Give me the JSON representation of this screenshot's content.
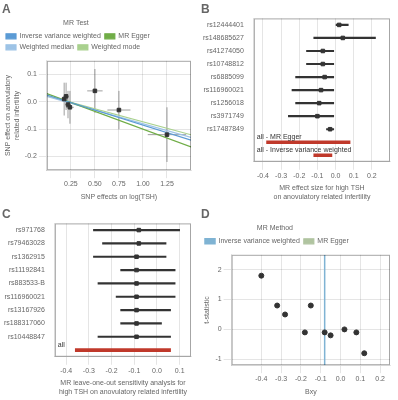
{
  "chart_data": [
    {
      "type": "scatter",
      "title": "A",
      "xlabel": "SNP effects on log(TSH)",
      "ylabel": "SNP effect on anovulatory related infertility",
      "xlim": [
        0.0,
        1.5
      ],
      "ylim": [
        -0.25,
        0.15
      ],
      "xticks": [
        0.25,
        {
          "value": 0.5,
          "label": "0.50"
        },
        0.75,
        {
          "value": 1.0,
          "label": "1.00"
        },
        1.25
      ],
      "yticks": [
        -0.2,
        -0.1,
        {
          "value": 0,
          "label": "0.0"
        },
        0.1
      ],
      "grid": true,
      "legend": "top",
      "legend_title": "MR Test",
      "series": [
        {
          "type": "scatter",
          "color": "#333333",
          "marker": "square",
          "x": [
            0.18,
            0.2,
            0.22,
            0.24,
            0.5,
            0.75,
            1.25
          ],
          "values": [
            0.01,
            0.02,
            -0.01,
            -0.02,
            0.04,
            -0.03,
            -0.12
          ],
          "xerr": [
            0.04,
            0.03,
            0.03,
            0.04,
            0.08,
            0.12,
            0.2
          ],
          "yerr": [
            0.06,
            0.05,
            0.05,
            0.06,
            0.08,
            0.07,
            0.1
          ]
        },
        {
          "name": "Inverse variance weighted",
          "type": "line",
          "color": "#5b9bd5",
          "x": [
            0.0,
            1.5
          ],
          "values": [
            0.025,
            -0.14
          ]
        },
        {
          "name": "MR Egger",
          "type": "line",
          "color": "#70ad47",
          "x": [
            0.0,
            1.5
          ],
          "values": [
            0.03,
            -0.165
          ]
        },
        {
          "name": "Weighted median",
          "type": "line",
          "color": "#9dc3e6",
          "x": [
            0.0,
            1.5
          ],
          "values": [
            0.02,
            -0.13
          ]
        },
        {
          "name": "Weighted mode",
          "type": "line",
          "color": "#a9d18e",
          "x": [
            0.0,
            1.5
          ],
          "values": [
            0.022,
            -0.1205
          ]
        }
      ]
    },
    {
      "type": "forest",
      "title": "B",
      "orientation": "horizontal",
      "xlabel": "MR effect size for high TSH\non anovulatory related infertility",
      "xlim": [
        -0.45,
        0.3
      ],
      "xticks": [
        -0.4,
        -0.3,
        -0.2,
        -0.1,
        {
          "value": 0,
          "label": "0.0"
        },
        0.1,
        0.2
      ],
      "grid": "x",
      "color": "#333333",
      "marker": "square",
      "categories": [
        "rs12444401",
        "rs148685627",
        "rs41274050",
        "rs10748812",
        "rs6885099",
        "rs116960021",
        "rs1256018",
        "rs3971749",
        "rs17487849"
      ],
      "values": [
        0.02,
        0.04,
        -0.07,
        -0.07,
        -0.06,
        -0.08,
        -0.09,
        -0.1,
        -0.03
      ],
      "ci_low": [
        0.0,
        -0.12,
        -0.16,
        -0.16,
        -0.22,
        -0.24,
        -0.22,
        -0.26,
        -0.05
      ],
      "ci_high": [
        0.07,
        0.22,
        -0.01,
        -0.01,
        -0.01,
        -0.01,
        -0.01,
        -0.01,
        -0.01
      ],
      "summary": [
        {
          "label": "all - MR Egger",
          "ci_low": -0.38,
          "ci_high": 0.08,
          "color": "#c0392b"
        },
        {
          "label": "all - Inverse variance weighted",
          "ci_low": -0.12,
          "ci_high": -0.02,
          "color": "#c0392b"
        }
      ]
    },
    {
      "type": "forest",
      "title": "C",
      "orientation": "horizontal",
      "xlabel": "MR leave-one-out sensitivity analysis for\nhigh TSH on anovulatory related infertility",
      "xlim": [
        -0.45,
        0.15
      ],
      "xticks": [
        -0.4,
        -0.3,
        -0.2,
        -0.1,
        {
          "value": 0,
          "label": "0.0"
        },
        0.1
      ],
      "grid": "x",
      "color": "#333333",
      "marker": "square",
      "categories": [
        "rs971768",
        "rs79463028",
        "rs1362915",
        "rs11192841",
        "rs883533-B",
        "rs116960021",
        "rs13167926",
        "rs188317060",
        "rs10448847"
      ],
      "values": [
        -0.08,
        -0.08,
        -0.09,
        -0.09,
        -0.09,
        -0.09,
        -0.09,
        -0.09,
        -0.09
      ],
      "ci_low": [
        -0.28,
        -0.24,
        -0.28,
        -0.16,
        -0.26,
        -0.18,
        -0.16,
        -0.16,
        -0.26
      ],
      "ci_high": [
        0.1,
        0.04,
        0.04,
        0.08,
        0.08,
        0.08,
        0.06,
        0.02,
        0.06
      ],
      "summary": [
        {
          "label": "all",
          "ci_low": -0.36,
          "ci_high": 0.06,
          "color": "#c0392b"
        }
      ]
    },
    {
      "type": "scatter",
      "title": "D",
      "xlabel": "Bxy",
      "ylabel": "t-statistic",
      "xlim": [
        -0.55,
        0.25
      ],
      "ylim": [
        -1.2,
        2.5
      ],
      "xticks": [
        -0.4,
        -0.3,
        -0.2,
        -0.1,
        {
          "value": 0,
          "label": "0.0"
        },
        0.1,
        0.2
      ],
      "yticks": [
        -1,
        0,
        1,
        2
      ],
      "grid": true,
      "legend": "top",
      "legend_title": "MR Method",
      "series": [
        {
          "type": "scatter",
          "color": "#333333",
          "marker": "circle",
          "x": [
            -0.4,
            -0.32,
            -0.28,
            -0.18,
            -0.15,
            -0.08,
            -0.05,
            0.02,
            0.08,
            0.12
          ],
          "values": [
            1.8,
            0.8,
            0.5,
            -0.1,
            0.8,
            -0.1,
            -0.2,
            0.0,
            -0.1,
            -0.8
          ]
        },
        {
          "name": "Inverse variance weighted",
          "type": "vline",
          "color": "#7fb3d3",
          "x": [
            -0.08
          ]
        },
        {
          "name": "MR Egger",
          "type": "line",
          "color": "#b0c4a0",
          "x": [],
          "values": []
        }
      ]
    }
  ]
}
